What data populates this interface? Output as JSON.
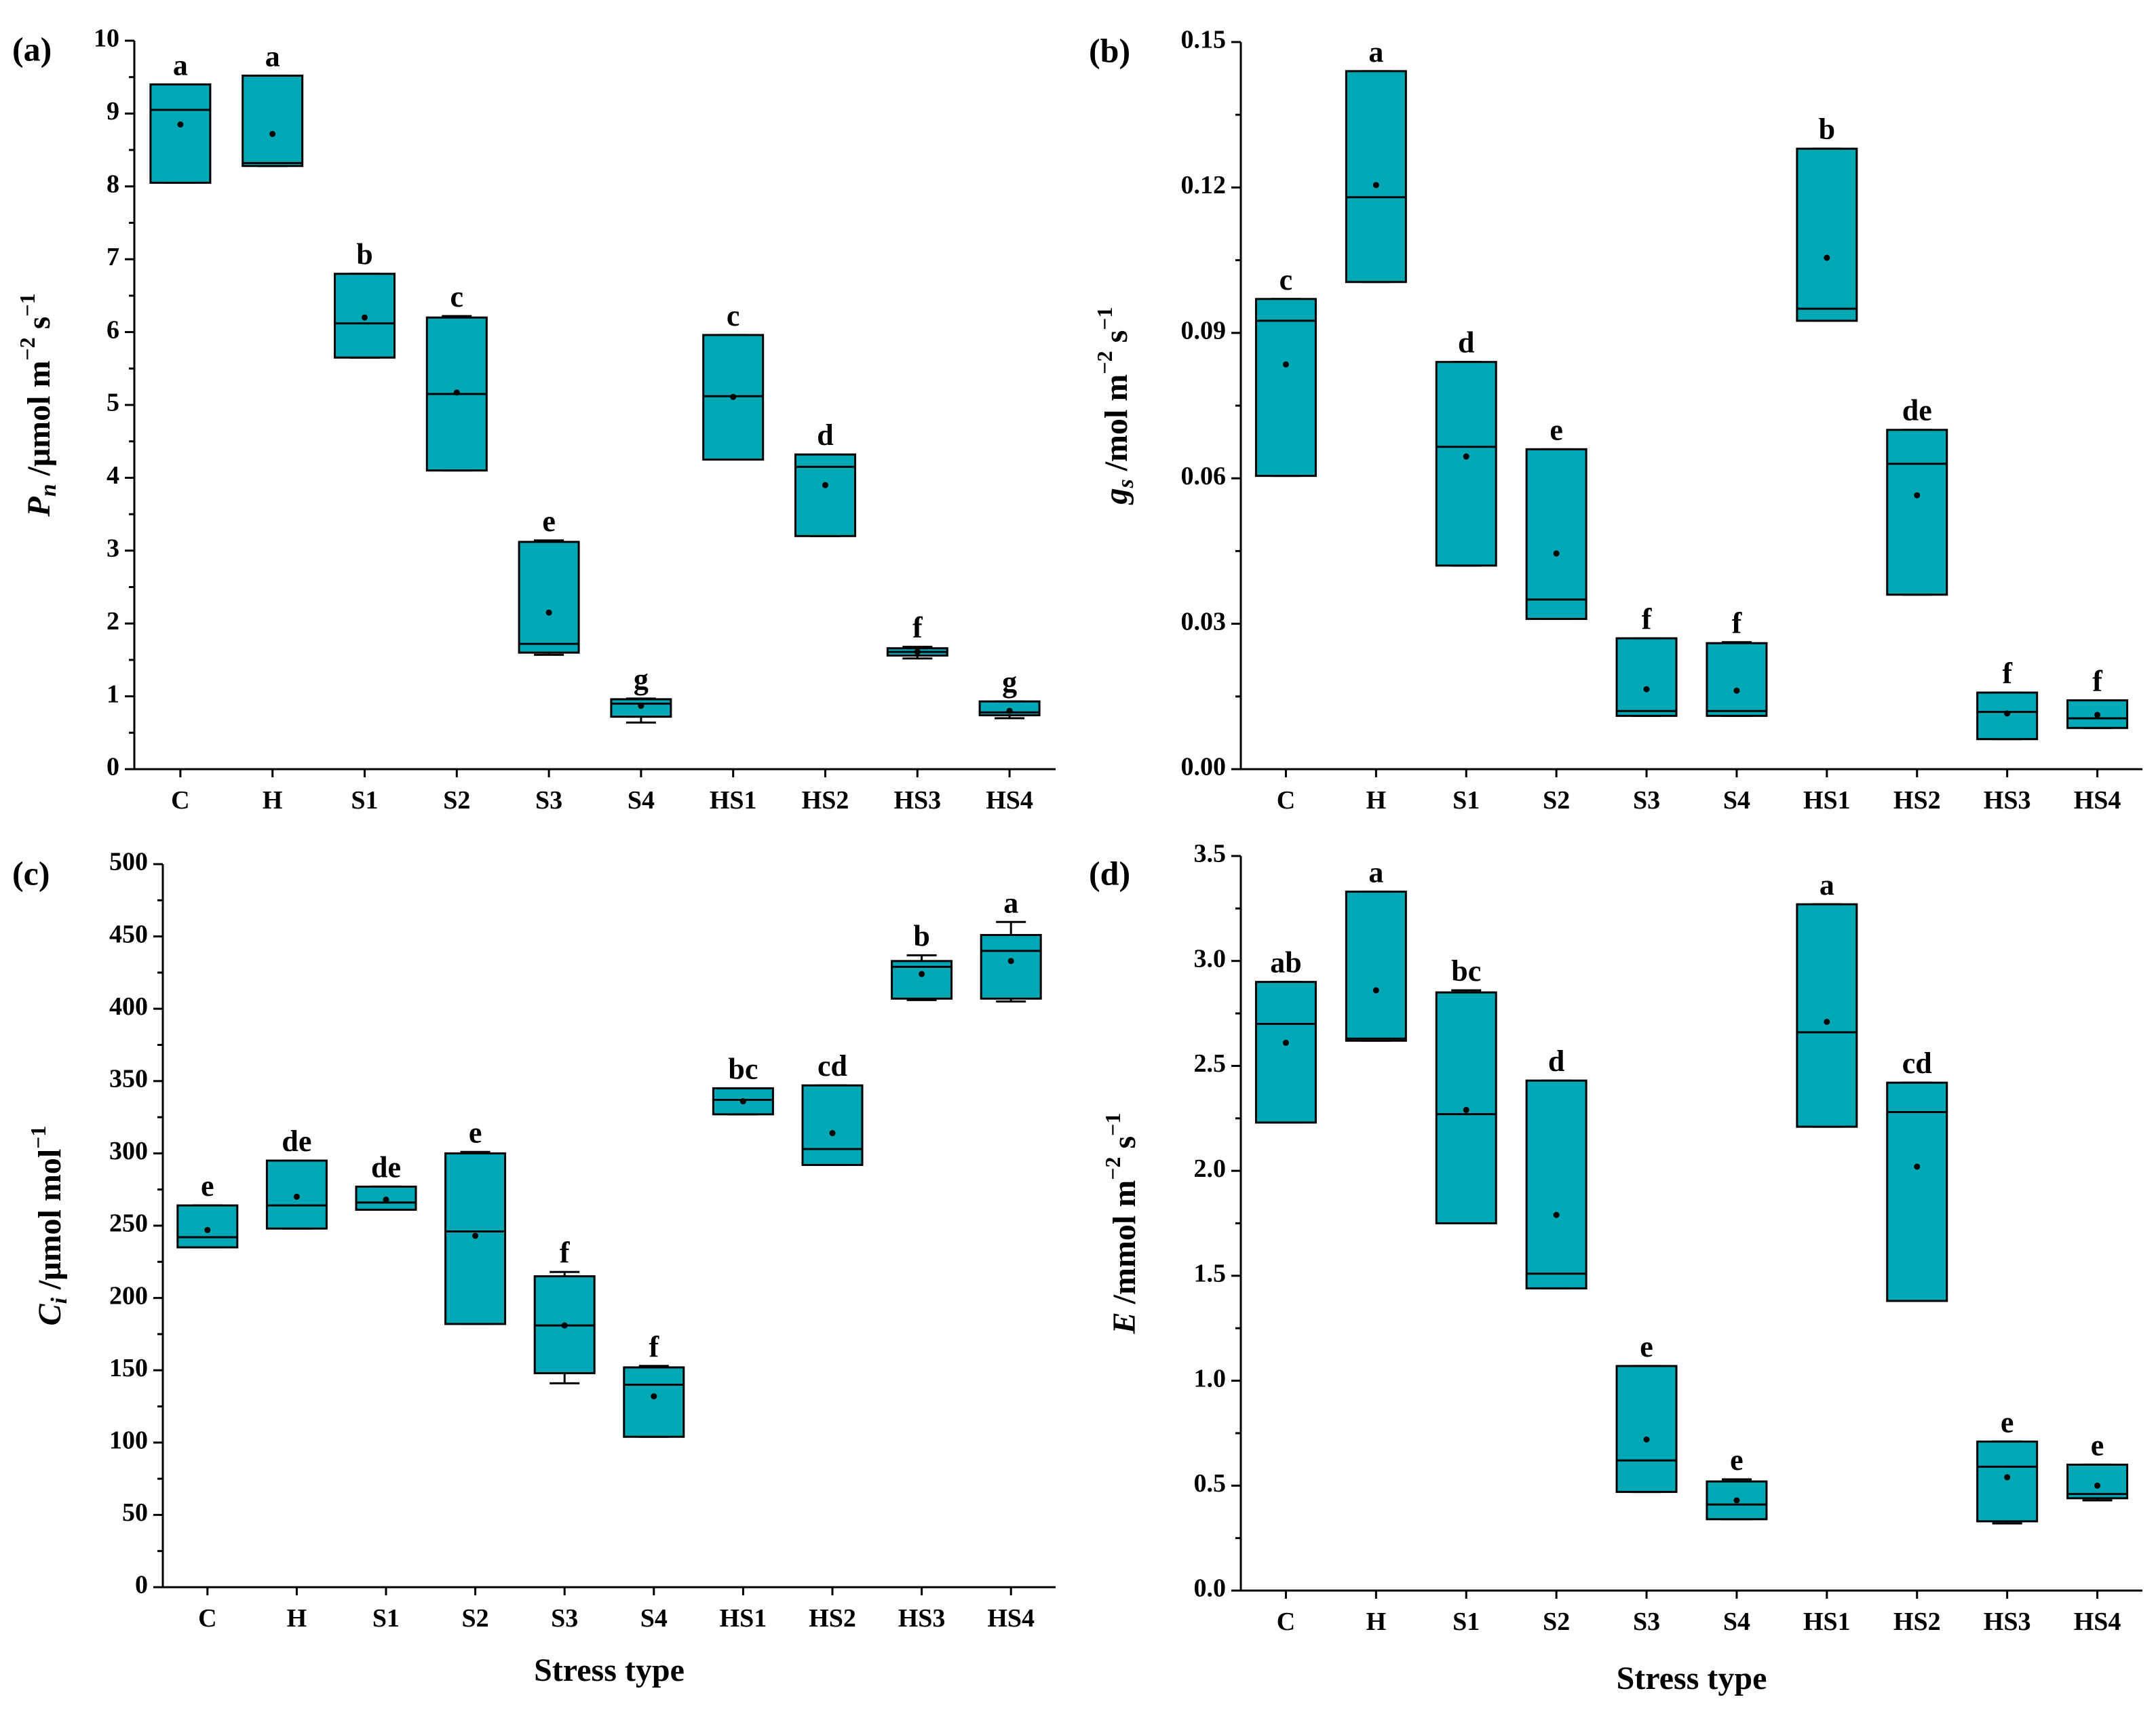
{
  "figure": {
    "box_color": "#00A7B5",
    "categories": [
      "C",
      "H",
      "S1",
      "S2",
      "S3",
      "S4",
      "HS1",
      "HS2",
      "HS3",
      "HS4"
    ],
    "xlabel": "Stress type"
  },
  "chart_data": [
    {
      "type": "box",
      "panel": "(a)",
      "ylabel": {
        "base": "P",
        "sub": "n",
        "unit_pre": " /μmol m",
        "exp1": "−2",
        "mid": " s",
        "exp2": "−1"
      },
      "ylim": [
        0,
        10
      ],
      "yticks": [
        0,
        1,
        2,
        3,
        4,
        5,
        6,
        7,
        8,
        9,
        10
      ],
      "ytick_labels": [
        "0",
        "1",
        "2",
        "3",
        "4",
        "5",
        "6",
        "7",
        "8",
        "9",
        "10"
      ],
      "xlabel": "",
      "boxes": [
        {
          "category": "C",
          "q1": 8.05,
          "median": 9.05,
          "q3": 9.4,
          "mean": 8.85,
          "whisker_low": 8.05,
          "whisker_high": 9.4,
          "letter": "a"
        },
        {
          "category": "H",
          "q1": 8.28,
          "median": 8.32,
          "q3": 9.52,
          "mean": 8.72,
          "whisker_low": 8.28,
          "whisker_high": 9.52,
          "letter": "a"
        },
        {
          "category": "S1",
          "q1": 5.65,
          "median": 6.12,
          "q3": 6.8,
          "mean": 6.2,
          "whisker_low": 5.65,
          "whisker_high": 6.8,
          "letter": "b"
        },
        {
          "category": "S2",
          "q1": 4.1,
          "median": 5.15,
          "q3": 6.2,
          "mean": 5.17,
          "whisker_low": 4.1,
          "whisker_high": 6.22,
          "letter": "c"
        },
        {
          "category": "S3",
          "q1": 1.6,
          "median": 1.72,
          "q3": 3.12,
          "mean": 2.15,
          "whisker_low": 1.57,
          "whisker_high": 3.14,
          "letter": "e"
        },
        {
          "category": "S4",
          "q1": 0.72,
          "median": 0.9,
          "q3": 0.96,
          "mean": 0.87,
          "whisker_low": 0.64,
          "whisker_high": 0.97,
          "letter": "g"
        },
        {
          "category": "HS1",
          "q1": 4.25,
          "median": 5.12,
          "q3": 5.96,
          "mean": 5.11,
          "whisker_low": 4.25,
          "whisker_high": 5.96,
          "letter": "c"
        },
        {
          "category": "HS2",
          "q1": 3.2,
          "median": 4.15,
          "q3": 4.32,
          "mean": 3.9,
          "whisker_low": 3.2,
          "whisker_high": 4.32,
          "letter": "d"
        },
        {
          "category": "HS3",
          "q1": 1.56,
          "median": 1.61,
          "q3": 1.66,
          "mean": 1.61,
          "whisker_low": 1.52,
          "whisker_high": 1.68,
          "letter": "f"
        },
        {
          "category": "HS4",
          "q1": 0.74,
          "median": 0.78,
          "q3": 0.93,
          "mean": 0.8,
          "whisker_low": 0.7,
          "whisker_high": 0.93,
          "letter": "g"
        }
      ]
    },
    {
      "type": "box",
      "panel": "(b)",
      "ylabel": {
        "base": "g",
        "sub": "s",
        "unit_pre": " /mol m",
        "exp1": "−2",
        "mid": " s",
        "exp2": "−1"
      },
      "ylim": [
        0,
        0.15
      ],
      "yticks": [
        0,
        0.03,
        0.06,
        0.09,
        0.12,
        0.15
      ],
      "ytick_labels": [
        "0.00",
        "0.03",
        "0.06",
        "0.09",
        "0.12",
        "0.15"
      ],
      "xlabel": "",
      "boxes": [
        {
          "category": "C",
          "q1": 0.0605,
          "median": 0.0925,
          "q3": 0.097,
          "mean": 0.0835,
          "whisker_low": 0.0605,
          "whisker_high": 0.097,
          "letter": "c"
        },
        {
          "category": "H",
          "q1": 0.1005,
          "median": 0.118,
          "q3": 0.144,
          "mean": 0.1205,
          "whisker_low": 0.1005,
          "whisker_high": 0.144,
          "letter": "a"
        },
        {
          "category": "S1",
          "q1": 0.042,
          "median": 0.0665,
          "q3": 0.084,
          "mean": 0.0645,
          "whisker_low": 0.042,
          "whisker_high": 0.084,
          "letter": "d"
        },
        {
          "category": "S2",
          "q1": 0.031,
          "median": 0.035,
          "q3": 0.066,
          "mean": 0.0445,
          "whisker_low": 0.031,
          "whisker_high": 0.066,
          "letter": "e"
        },
        {
          "category": "S3",
          "q1": 0.011,
          "median": 0.012,
          "q3": 0.027,
          "mean": 0.0165,
          "whisker_low": 0.011,
          "whisker_high": 0.027,
          "letter": "f"
        },
        {
          "category": "S4",
          "q1": 0.011,
          "median": 0.012,
          "q3": 0.026,
          "mean": 0.0162,
          "whisker_low": 0.011,
          "whisker_high": 0.0262,
          "letter": "f"
        },
        {
          "category": "HS1",
          "q1": 0.0925,
          "median": 0.095,
          "q3": 0.128,
          "mean": 0.1055,
          "whisker_low": 0.0925,
          "whisker_high": 0.128,
          "letter": "b"
        },
        {
          "category": "HS2",
          "q1": 0.036,
          "median": 0.063,
          "q3": 0.07,
          "mean": 0.0565,
          "whisker_low": 0.036,
          "whisker_high": 0.07,
          "letter": "de"
        },
        {
          "category": "HS3",
          "q1": 0.0062,
          "median": 0.0118,
          "q3": 0.0158,
          "mean": 0.0115,
          "whisker_low": 0.0062,
          "whisker_high": 0.0158,
          "letter": "f"
        },
        {
          "category": "HS4",
          "q1": 0.0085,
          "median": 0.0105,
          "q3": 0.0142,
          "mean": 0.0112,
          "whisker_low": 0.0085,
          "whisker_high": 0.0142,
          "letter": "f"
        }
      ]
    },
    {
      "type": "box",
      "panel": "(c)",
      "ylabel": {
        "base": "C",
        "sub": "i",
        "unit_pre": " /μmol mol",
        "exp1": "−1",
        "mid": "",
        "exp2": ""
      },
      "ylim": [
        0,
        500
      ],
      "yticks": [
        0,
        50,
        100,
        150,
        200,
        250,
        300,
        350,
        400,
        450,
        500
      ],
      "ytick_labels": [
        "0",
        "50",
        "100",
        "150",
        "200",
        "250",
        "300",
        "350",
        "400",
        "450",
        "500"
      ],
      "xlabel": "Stress type",
      "boxes": [
        {
          "category": "C",
          "q1": 235,
          "median": 242,
          "q3": 264,
          "mean": 247,
          "whisker_low": 235,
          "whisker_high": 264,
          "letter": "e"
        },
        {
          "category": "H",
          "q1": 248,
          "median": 264,
          "q3": 295,
          "mean": 270,
          "whisker_low": 248,
          "whisker_high": 295,
          "letter": "de"
        },
        {
          "category": "S1",
          "q1": 261,
          "median": 266,
          "q3": 277,
          "mean": 268,
          "whisker_low": 261,
          "whisker_high": 277,
          "letter": "de"
        },
        {
          "category": "S2",
          "q1": 182,
          "median": 246,
          "q3": 300,
          "mean": 243,
          "whisker_low": 182,
          "whisker_high": 301,
          "letter": "e"
        },
        {
          "category": "S3",
          "q1": 148,
          "median": 181,
          "q3": 215,
          "mean": 181,
          "whisker_low": 141,
          "whisker_high": 218,
          "letter": "f"
        },
        {
          "category": "S4",
          "q1": 104,
          "median": 140,
          "q3": 152,
          "mean": 132,
          "whisker_low": 104,
          "whisker_high": 153,
          "letter": "f"
        },
        {
          "category": "HS1",
          "q1": 327,
          "median": 337,
          "q3": 345,
          "mean": 336,
          "whisker_low": 327,
          "whisker_high": 345,
          "letter": "bc"
        },
        {
          "category": "HS2",
          "q1": 292,
          "median": 303,
          "q3": 347,
          "mean": 314,
          "whisker_low": 292,
          "whisker_high": 347,
          "letter": "cd"
        },
        {
          "category": "HS3",
          "q1": 407,
          "median": 429,
          "q3": 433,
          "mean": 424,
          "whisker_low": 406,
          "whisker_high": 437,
          "letter": "b"
        },
        {
          "category": "HS4",
          "q1": 407,
          "median": 440,
          "q3": 451,
          "mean": 433,
          "whisker_low": 405,
          "whisker_high": 460,
          "letter": "a"
        }
      ]
    },
    {
      "type": "box",
      "panel": "(d)",
      "ylabel": {
        "base": "E",
        "sub": "",
        "unit_pre": " /mmol m",
        "exp1": "−2",
        "mid": " s",
        "exp2": "−1"
      },
      "ylim": [
        0,
        3.5
      ],
      "yticks": [
        0,
        0.5,
        1,
        1.5,
        2,
        2.5,
        3,
        3.5
      ],
      "ytick_labels": [
        "0.0",
        "0.5",
        "1.0",
        "1.5",
        "2.0",
        "2.5",
        "3.0",
        "3.5"
      ],
      "xlabel": "Stress type",
      "boxes": [
        {
          "category": "C",
          "q1": 2.23,
          "median": 2.7,
          "q3": 2.9,
          "mean": 2.61,
          "whisker_low": 2.23,
          "whisker_high": 2.9,
          "letter": "ab"
        },
        {
          "category": "H",
          "q1": 2.62,
          "median": 2.63,
          "q3": 3.33,
          "mean": 2.86,
          "whisker_low": 2.62,
          "whisker_high": 3.33,
          "letter": "a"
        },
        {
          "category": "S1",
          "q1": 1.75,
          "median": 2.27,
          "q3": 2.85,
          "mean": 2.29,
          "whisker_low": 1.75,
          "whisker_high": 2.86,
          "letter": "bc"
        },
        {
          "category": "S2",
          "q1": 1.44,
          "median": 1.51,
          "q3": 2.43,
          "mean": 1.79,
          "whisker_low": 1.44,
          "whisker_high": 2.43,
          "letter": "d"
        },
        {
          "category": "S3",
          "q1": 0.47,
          "median": 0.62,
          "q3": 1.07,
          "mean": 0.72,
          "whisker_low": 0.47,
          "whisker_high": 1.07,
          "letter": "e"
        },
        {
          "category": "S4",
          "q1": 0.34,
          "median": 0.41,
          "q3": 0.52,
          "mean": 0.43,
          "whisker_low": 0.34,
          "whisker_high": 0.53,
          "letter": "e"
        },
        {
          "category": "HS1",
          "q1": 2.21,
          "median": 2.66,
          "q3": 3.27,
          "mean": 2.71,
          "whisker_low": 2.21,
          "whisker_high": 3.27,
          "letter": "a"
        },
        {
          "category": "HS2",
          "q1": 1.38,
          "median": 2.28,
          "q3": 2.42,
          "mean": 2.02,
          "whisker_low": 1.38,
          "whisker_high": 2.42,
          "letter": "cd"
        },
        {
          "category": "HS3",
          "q1": 0.33,
          "median": 0.59,
          "q3": 0.71,
          "mean": 0.54,
          "whisker_low": 0.32,
          "whisker_high": 0.71,
          "letter": "e"
        },
        {
          "category": "HS4",
          "q1": 0.44,
          "median": 0.46,
          "q3": 0.6,
          "mean": 0.5,
          "whisker_low": 0.43,
          "whisker_high": 0.6,
          "letter": "e"
        }
      ]
    }
  ]
}
